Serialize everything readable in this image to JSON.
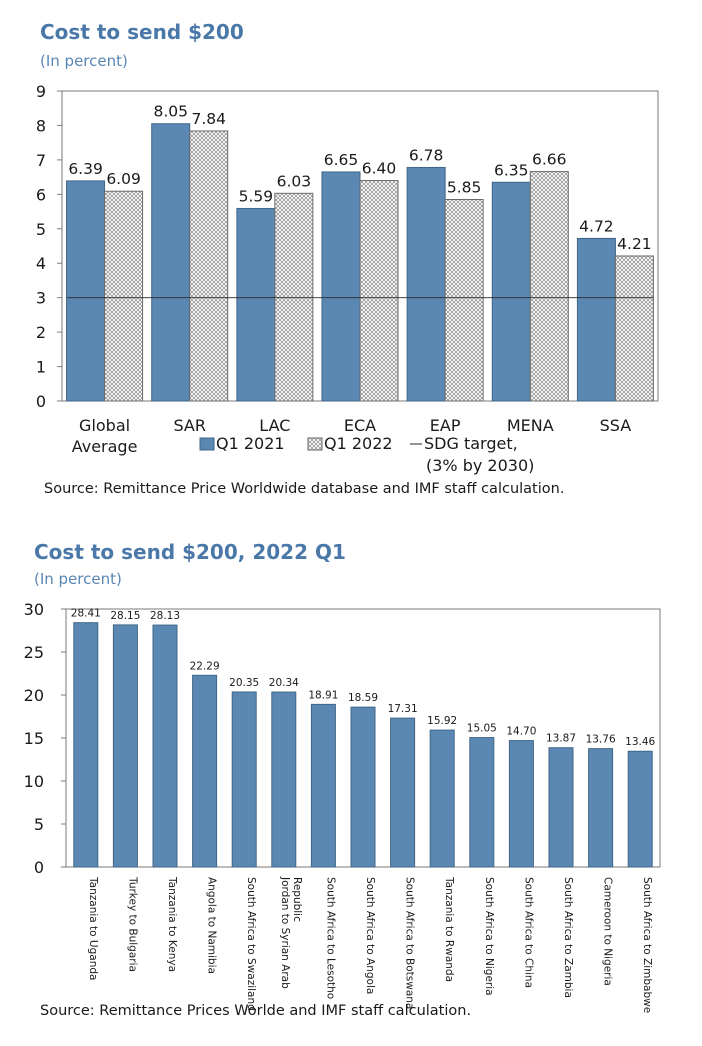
{
  "colors": {
    "bar": "#5b87b3",
    "title": "#4a78a8",
    "subtitle": "#5a86b4"
  },
  "chart_data": [
    {
      "type": "bar",
      "title": "Cost to send $200",
      "subtitle": "(In percent)",
      "categories": [
        "Global Average",
        "SAR",
        "LAC",
        "ECA",
        "EAP",
        "MENA",
        "SSA"
      ],
      "category_lines": [
        [
          "Global",
          "Average"
        ],
        [
          "SAR"
        ],
        [
          "LAC"
        ],
        [
          "ECA"
        ],
        [
          "EAP"
        ],
        [
          "MENA"
        ],
        [
          "SSA"
        ]
      ],
      "series": [
        {
          "name": "Q1 2021",
          "values": [
            6.39,
            8.05,
            5.59,
            6.65,
            6.78,
            6.35,
            4.72
          ],
          "labels": [
            "6.39",
            "8.05",
            "5.59",
            "6.65",
            "6.78",
            "6.35",
            "4.72"
          ]
        },
        {
          "name": "Q1 2022",
          "values": [
            6.09,
            7.84,
            6.03,
            6.4,
            5.85,
            6.66,
            4.21
          ],
          "labels": [
            "6.09",
            "7.84",
            "6.03",
            "6.40",
            "5.85",
            "6.66",
            "4.21"
          ]
        }
      ],
      "reference_line": {
        "name": "SDG target,",
        "name_line2": "(3% by 2030)",
        "value": 3
      },
      "ylim": [
        0,
        9
      ],
      "yticks": [
        "0",
        "1",
        "2",
        "3",
        "4",
        "5",
        "6",
        "7",
        "8",
        "9"
      ],
      "xlabel": "",
      "ylabel": "",
      "legend": {
        "position": "bottom"
      },
      "source": "Source: Remittance Price Worldwide database and IMF staff calculation."
    },
    {
      "type": "bar",
      "title": "Cost to send $200, 2022 Q1",
      "subtitle": "(In percent)",
      "categories": [
        "Tanzania to Uganda",
        "Turkey to Bulgaria",
        "Tanzania to Kenya",
        "Angola to Namibia",
        "South Africa to Swaziland",
        "Jordan to Syrian Arab Republic",
        "South Africa to Lesotho",
        "South Africa to Angola",
        "South Africa to Botswana",
        "Tanzania to Rwanda",
        "South Africa to Nigeria",
        "South Africa to China",
        "South Africa to Zambia",
        "Cameroon to Nigeria",
        "South Africa to Zimbabwe"
      ],
      "category_lines": [
        [
          "Tanzania to Uganda"
        ],
        [
          "Turkey to Bulgaria"
        ],
        [
          "Tanzania to Kenya"
        ],
        [
          "Angola to Namibia"
        ],
        [
          "South Africa to Swaziland"
        ],
        [
          "Jordan to Syrian Arab",
          "Republic"
        ],
        [
          "South Africa to Lesotho"
        ],
        [
          "South Africa to Angola"
        ],
        [
          "South Africa to Botswana"
        ],
        [
          "Tanzania to Rwanda"
        ],
        [
          "South Africa to Nigeria"
        ],
        [
          "South Africa to China"
        ],
        [
          "South Africa to Zambia"
        ],
        [
          "Cameroon to Nigeria"
        ],
        [
          "South Africa to Zimbabwe"
        ]
      ],
      "values": [
        28.41,
        28.15,
        28.13,
        22.29,
        20.35,
        20.34,
        18.91,
        18.59,
        17.31,
        15.92,
        15.05,
        14.7,
        13.87,
        13.76,
        13.46
      ],
      "labels": [
        "28.41",
        "28.15",
        "28.13",
        "22.29",
        "20.35",
        "20.34",
        "18.91",
        "18.59",
        "17.31",
        "15.92",
        "15.05",
        "14.70",
        "13.87",
        "13.76",
        "13.46"
      ],
      "ylim": [
        0,
        30
      ],
      "yticks": [
        "0",
        "5",
        "10",
        "15",
        "20",
        "25",
        "30"
      ],
      "xlabel": "",
      "ylabel": "",
      "source": "Source: Remittance Prices Worlde and IMF staff calculation."
    }
  ]
}
